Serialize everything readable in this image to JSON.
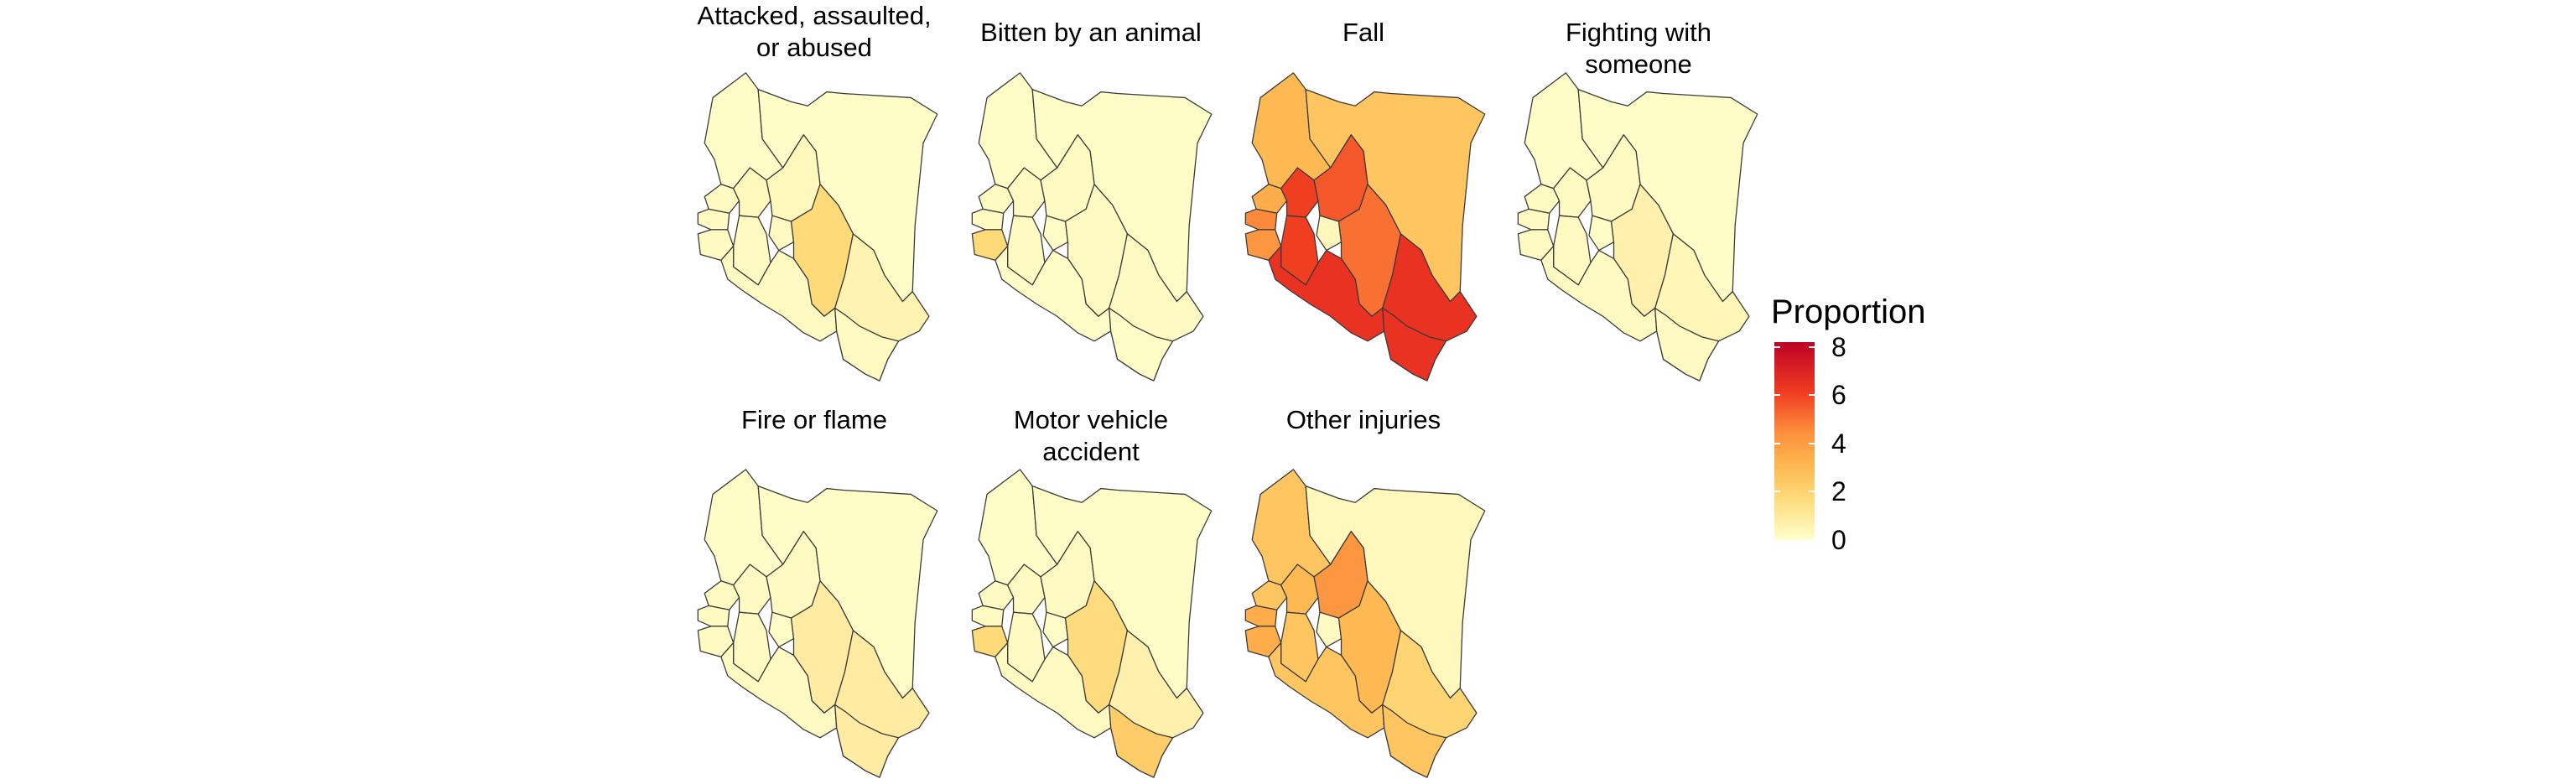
{
  "chart_data": {
    "type": "choropleth-facet",
    "panels": [
      {
        "title": "Attacked, assaulted,\nor abused",
        "regions": {
          "north": 0.1,
          "northeast": 0.1,
          "west": 0.2,
          "lakeW": 0.2,
          "lakeB": 0.2,
          "lakeC": 0.3,
          "riftS": 0.2,
          "central": 0.3,
          "nairobi": 0.2,
          "eastern": 1.6,
          "coast": 0.5,
          "southwest": 0.2,
          "southeast": 0.2
        }
      },
      {
        "title": "Bitten by an animal",
        "regions": {
          "north": 0.1,
          "northeast": 0.1,
          "west": 0.2,
          "lakeW": 0.2,
          "lakeB": 1.6,
          "lakeC": 0.2,
          "riftS": 0.2,
          "central": 0.2,
          "nairobi": 0.1,
          "eastern": 0.2,
          "coast": 0.2,
          "southwest": 0.1,
          "southeast": 0.1
        }
      },
      {
        "title": "Fall",
        "regions": {
          "north": 3.0,
          "northeast": 2.5,
          "west": 3.5,
          "lakeW": 5.0,
          "lakeB": 4.5,
          "lakeC": 6.5,
          "riftS": 6.5,
          "central": 6.0,
          "nairobi": 0.3,
          "eastern": 5.5,
          "coast": 6.8,
          "southwest": 6.8,
          "southeast": 6.8
        }
      },
      {
        "title": "Fighting with someone",
        "regions": {
          "north": 0.1,
          "northeast": 0.1,
          "west": 0.2,
          "lakeW": 0.2,
          "lakeB": 0.2,
          "lakeC": 0.2,
          "riftS": 0.2,
          "central": 0.2,
          "nairobi": 0.1,
          "eastern": 0.6,
          "coast": 0.4,
          "southwest": 0.2,
          "southeast": 0.2
        }
      },
      {
        "title": "Fire or flame",
        "regions": {
          "north": 0.1,
          "northeast": 0.1,
          "west": 0.2,
          "lakeW": 0.2,
          "lakeB": 0.2,
          "lakeC": 0.2,
          "riftS": 0.2,
          "central": 0.2,
          "nairobi": 0.1,
          "eastern": 0.8,
          "coast": 0.8,
          "southwest": 0.2,
          "southeast": 0.8
        }
      },
      {
        "title": "Motor vehicle accident",
        "regions": {
          "north": 0.1,
          "northeast": 0.1,
          "west": 0.2,
          "lakeW": 0.2,
          "lakeB": 1.6,
          "lakeC": 0.2,
          "riftS": 0.2,
          "central": 0.2,
          "nairobi": 0.1,
          "eastern": 1.5,
          "coast": 0.6,
          "southwest": 0.2,
          "southeast": 2.2
        }
      },
      {
        "title": "Other injuries",
        "regions": {
          "north": 2.5,
          "northeast": 0.3,
          "west": 2.5,
          "lakeW": 3.5,
          "lakeB": 3.5,
          "lakeC": 3.0,
          "riftS": 2.5,
          "central": 4.5,
          "nairobi": 0.2,
          "eastern": 3.0,
          "coast": 1.8,
          "southwest": 2.5,
          "southeast": 2.5
        }
      }
    ],
    "legend": {
      "title": "Proportion",
      "ticks": [
        0,
        2,
        4,
        6,
        8
      ],
      "range": [
        0,
        8.2
      ]
    },
    "colors": [
      "#ffffcc",
      "#fed976",
      "#feb24c",
      "#fd8d3c",
      "#f03b20",
      "#bd0026"
    ],
    "grid": false
  }
}
